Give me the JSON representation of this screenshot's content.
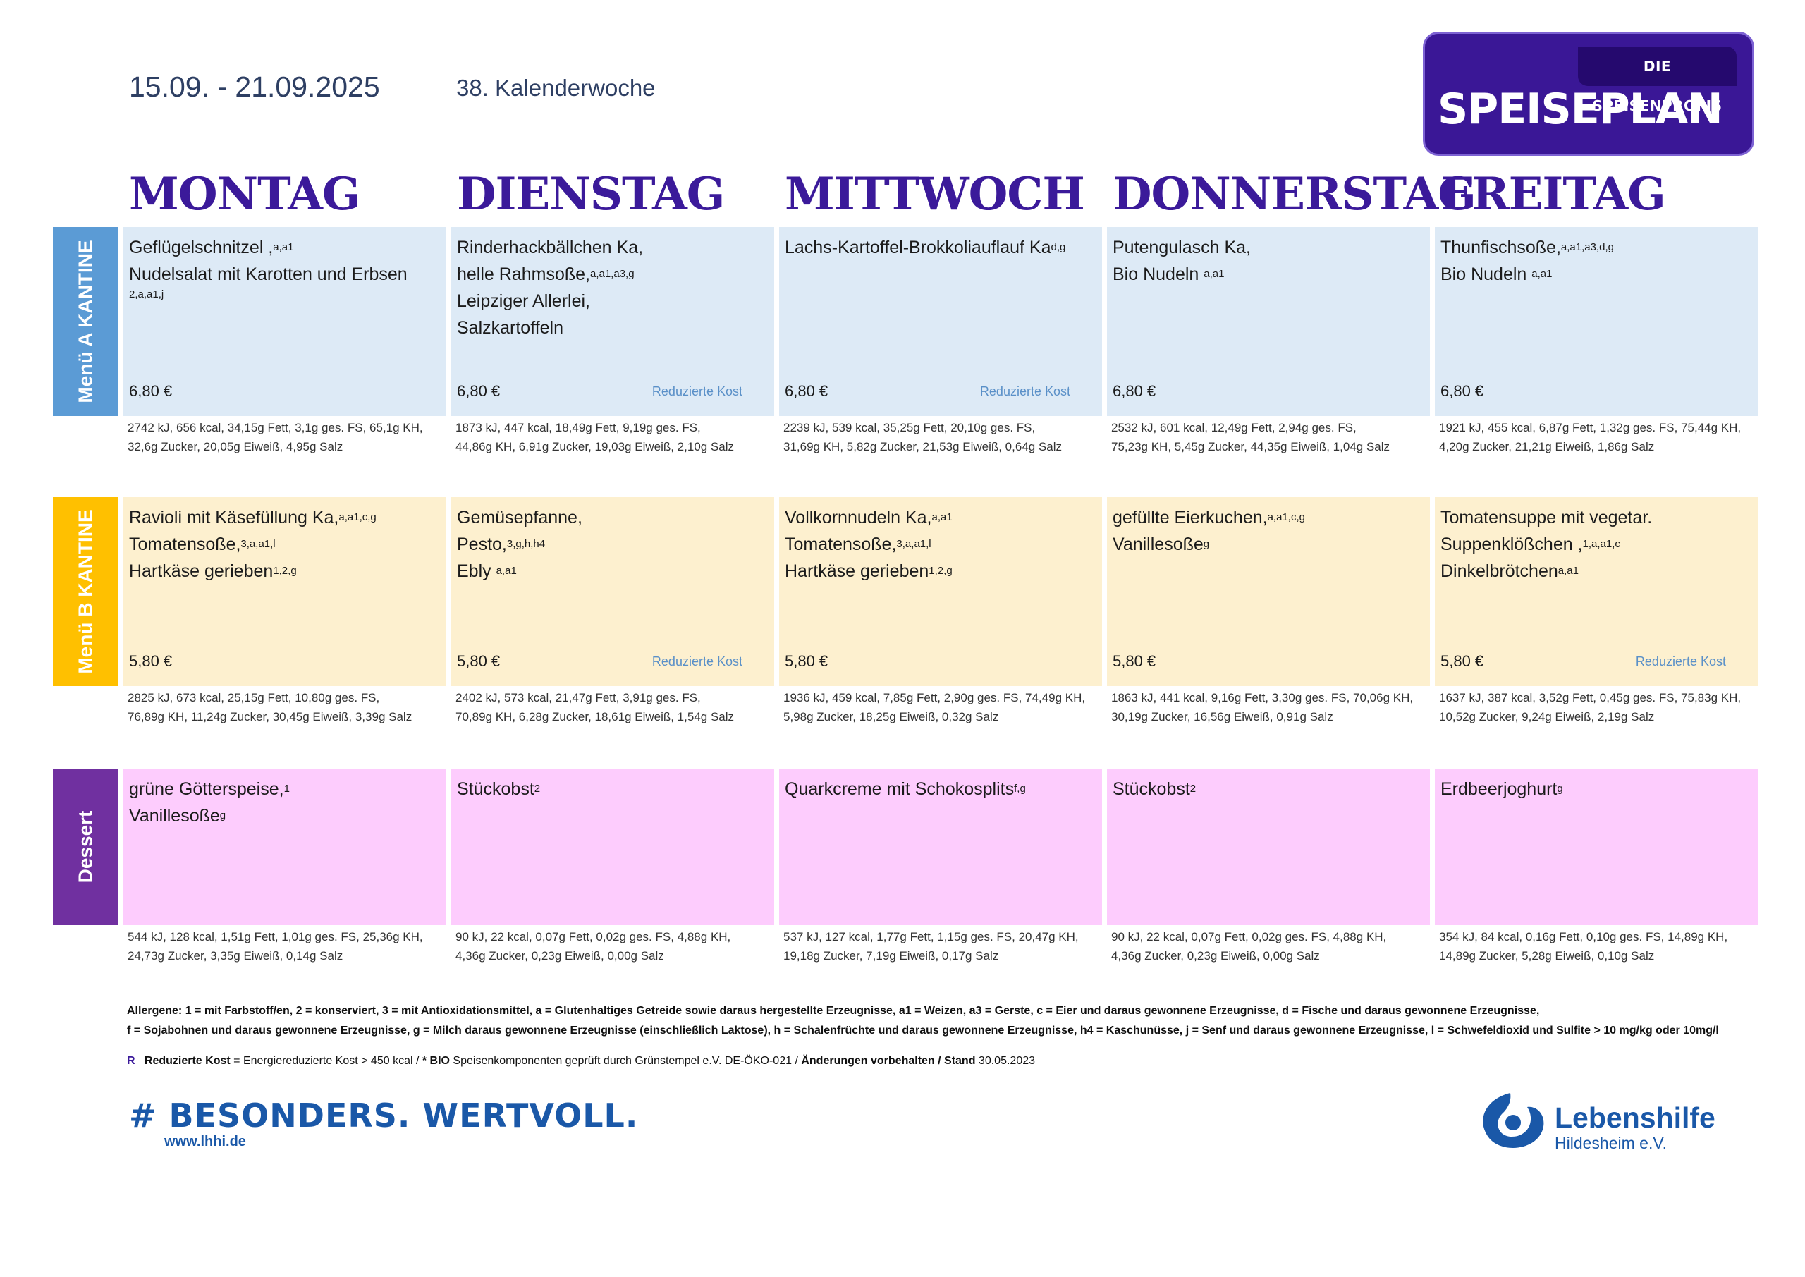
{
  "header": {
    "date_range": "15.09. - 21.09.2025",
    "calendar_week": "38. Kalenderwoche",
    "brand_tag": "DIE SPEISENPROFIS",
    "brand_title": "SPEISEPLAN"
  },
  "days": [
    "MONTAG",
    "DIENSTAG",
    "MITTWOCH",
    "DONNERSTAG",
    "FREITAG"
  ],
  "sections": {
    "a": {
      "label": "Menü A KANTINE",
      "color": "#5b9bd5",
      "cells": [
        {
          "l1": "Geflügelschnitzel ,",
          "l1s": "a,a1",
          "l2": "Nudelsalat mit Karotten und Erbsen",
          "l3": "",
          "l3s": "",
          "extra": "2,a,a1,j",
          "price": "6,80 €",
          "reduced": "",
          "n1": "2742 kJ, 656 kcal, 34,15g Fett, 3,1g ges. FS, 65,1g KH,",
          "n2": "32,6g Zucker, 20,05g Eiweiß, 4,95g Salz"
        },
        {
          "l1": "Rinderhackbällchen Ka,",
          "l1s": "",
          "l2": "helle Rahmsoße,",
          "l2s": "a,a1,a3,g",
          "l3": "Leipziger Allerlei,",
          "l4": "Salzkartoffeln",
          "price": "6,80 €",
          "reduced": "Reduzierte Kost",
          "n1": "1873 kJ, 447 kcal, 18,49g Fett, 9,19g ges. FS,",
          "n2": "44,86g KH, 6,91g Zucker, 19,03g Eiweiß, 2,10g Salz"
        },
        {
          "l1": "Lachs-Kartoffel-Brokkoliauflauf Ka",
          "l1s": "d,g",
          "price": "6,80 €",
          "reduced": "Reduzierte Kost",
          "n1": "2239 kJ, 539 kcal, 35,25g Fett, 20,10g ges. FS,",
          "n2": "31,69g KH, 5,82g Zucker, 21,53g Eiweiß, 0,64g Salz"
        },
        {
          "l1": "Putengulasch Ka,",
          "l1s": "",
          "l2": "Bio Nudeln ",
          "l2s": "a,a1",
          "price": "6,80 €",
          "reduced": "",
          "n1": "2532 kJ, 601 kcal, 12,49g Fett, 2,94g ges. FS,",
          "n2": "75,23g KH, 5,45g Zucker, 44,35g Eiweiß, 1,04g Salz"
        },
        {
          "l1": "Thunfischsoße,",
          "l1s": "a,a1,a3,d,g",
          "l2": "Bio Nudeln ",
          "l2s": "a,a1",
          "price": "6,80 €",
          "reduced": "",
          "n1": "1921 kJ, 455 kcal, 6,87g Fett, 1,32g ges. FS, 75,44g KH,",
          "n2": "4,20g Zucker, 21,21g Eiweiß, 1,86g Salz"
        }
      ]
    },
    "b": {
      "label": "Menü B KANTINE",
      "color": "#ffc000",
      "cells": [
        {
          "l1": "Ravioli mit Käsefüllung Ka,",
          "l1s": "a,a1,c,g",
          "l2": "Tomatensoße,",
          "l2s": "3,a,a1,l",
          "l3": "Hartkäse gerieben",
          "l3s": "1,2,g",
          "price": "5,80 €",
          "reduced": "",
          "n1": "2825 kJ, 673 kcal, 25,15g Fett, 10,80g ges. FS,",
          "n2": "76,89g KH, 11,24g Zucker, 30,45g Eiweiß, 3,39g Salz"
        },
        {
          "l1": "Gemüsepfanne,",
          "l1s": "",
          "l2": "Pesto,",
          "l2s": "3,g,h,h4",
          "l3": "Ebly ",
          "l3s": "a,a1",
          "price": "5,80 €",
          "reduced": "Reduzierte Kost",
          "n1": "2402 kJ, 573 kcal, 21,47g Fett, 3,91g ges. FS,",
          "n2": "70,89g KH, 6,28g Zucker, 18,61g Eiweiß, 1,54g Salz"
        },
        {
          "l1": "Vollkornnudeln Ka,",
          "l1s": "a,a1",
          "l2": "Tomatensoße,",
          "l2s": "3,a,a1,l",
          "l3": "Hartkäse gerieben",
          "l3s": "1,2,g",
          "price": "5,80 €",
          "reduced": "",
          "n1": "1936 kJ, 459 kcal, 7,85g Fett, 2,90g ges. FS, 74,49g KH,",
          "n2": "5,98g Zucker, 18,25g Eiweiß, 0,32g Salz"
        },
        {
          "l1": "gefüllte Eierkuchen,",
          "l1s": "a,a1,c,g",
          "l2": "Vanillesoße",
          "l2s": "g",
          "price": "5,80 €",
          "reduced": "",
          "n1": "1863 kJ, 441 kcal, 9,16g Fett, 3,30g ges. FS, 70,06g KH,",
          "n2": "30,19g Zucker, 16,56g Eiweiß, 0,91g Salz"
        },
        {
          "l1": "Tomatensuppe mit vegetar.",
          "l1s": "",
          "l2": "Suppenklößchen ,",
          "l2s": "1,a,a1,c",
          "l3": "Dinkelbrötchen",
          "l3s": "a,a1",
          "price": "5,80 €",
          "reduced": "Reduzierte Kost",
          "n1": "1637 kJ, 387 kcal, 3,52g Fett, 0,45g ges. FS, 75,83g KH,",
          "n2": "10,52g Zucker, 9,24g Eiweiß, 2,19g Salz"
        }
      ]
    },
    "d": {
      "label": "Dessert",
      "color": "#7030a0",
      "cells": [
        {
          "l1": "grüne Götterspeise,",
          "l1s": "1",
          "l2": "Vanillesoße",
          "l2s": "g",
          "n1": "544 kJ, 128 kcal, 1,51g Fett, 1,01g ges. FS, 25,36g KH,",
          "n2": "24,73g Zucker, 3,35g Eiweiß, 0,14g Salz"
        },
        {
          "l1": "Stückobst",
          "l1s": "2",
          "n1": "90 kJ, 22 kcal, 0,07g Fett, 0,02g ges. FS, 4,88g KH,",
          "n2": "4,36g Zucker, 0,23g Eiweiß, 0,00g Salz"
        },
        {
          "l1": "Quarkcreme mit Schokosplits",
          "l1s": "f,g",
          "n1": "537 kJ, 127 kcal, 1,77g Fett, 1,15g ges. FS, 20,47g KH,",
          "n2": "19,18g Zucker, 7,19g Eiweiß, 0,17g Salz"
        },
        {
          "l1": "Stückobst",
          "l1s": "2",
          "n1": "90 kJ, 22 kcal, 0,07g Fett, 0,02g ges. FS, 4,88g KH,",
          "n2": "4,36g Zucker, 0,23g Eiweiß, 0,00g Salz"
        },
        {
          "l1": "Erdbeerjoghurt",
          "l1s": "g",
          "n1": "354 kJ, 84 kcal, 0,16g Fett, 0,10g ges. FS, 14,89g KH,",
          "n2": "14,89g Zucker, 5,28g Eiweiß, 0,10g Salz"
        }
      ]
    }
  },
  "footer": {
    "allergens_1": "Allergene: 1 = mit Farbstoff/en, 2 = konserviert, 3 = mit Antioxidationsmittel, a = Glutenhaltiges Getreide sowie daraus hergestellte Erzeugnisse, a1 = Weizen, a3 = Gerste, c = Eier und daraus gewonnene Erzeugnisse, d = Fische und daraus gewonnene Erzeugnisse,",
    "allergens_2": "f = Sojabohnen und daraus gewonnene Erzeugnisse, g = Milch daraus gewonnene Erzeugnisse (einschließlich Laktose), h = Schalenfrüchte und daraus gewonnene Erzeugnisse, h4 = Kaschunüsse, j = Senf und daraus gewonnene Erzeugnisse, l = Schwefeldioxid und Sulfite > 10 mg/kg oder 10mg/l",
    "legend_r": "R",
    "legend_reduced": "Reduzierte Kost",
    "legend_text1": " = Energiereduzierte Kost > 450 kcal / ",
    "legend_bio": "* BIO",
    "legend_text2": " Speisenkomponenten geprüft durch Grünstempel e.V. DE-ÖKO-021 / ",
    "legend_changes": "Änderungen vorbehalten / Stand",
    "legend_date": " 30.05.2023",
    "slogan": "# BESONDERS. WERTVOLL.",
    "website": "www.lhhi.de",
    "org_name": "Lebenshilfe",
    "org_city": "Hildesheim e.V."
  }
}
